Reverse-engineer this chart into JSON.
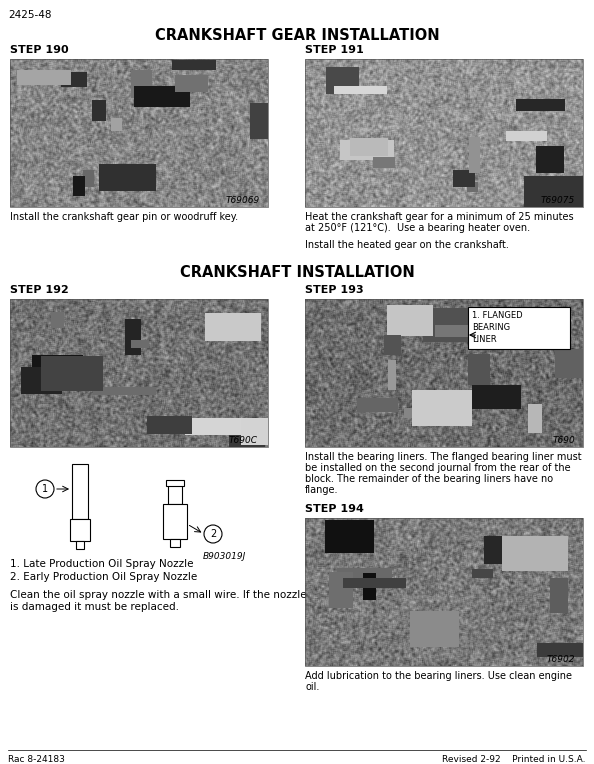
{
  "page_id": "2425-48",
  "bg_color": "#ffffff",
  "section1_title": "CRANKSHAFT GEAR INSTALLATION",
  "section2_title": "CRANKSHAFT INSTALLATION",
  "footer_left": "Rac 8-24183",
  "footer_right": "Revised 2-92    Printed in U.S.A.",
  "step190_label": "STEP 190",
  "step191_label": "STEP 191",
  "step192_label": "STEP 192",
  "step193_label": "STEP 193",
  "step194_label": "STEP 194",
  "img190_id": "T69069",
  "img191_id": "T69075",
  "img192_id": "T690C",
  "img193_id": "T690",
  "img194_id": "T6902",
  "caption190": "Install the crankshaft gear pin or woodruff key.",
  "caption191_line1": "Heat the crankshaft gear for a minimum of 25 minutes",
  "caption191_line2": "at 250°F (121°C).  Use a bearing heater oven.",
  "caption191_line3": "",
  "caption191_line4": "Install the heated gear on the crankshaft.",
  "flanged_label": "1. FLANGED\nBEARING\nLINER",
  "caption193_line1": "Install the bearing liners. The flanged bearing liner must",
  "caption193_line2": "be installed on the second journal from the rear of the",
  "caption193_line3": "block. The remainder of the bearing liners have no",
  "caption193_line4": "flange.",
  "caption194_line1": "Add lubrication to the bearing liners. Use clean engine",
  "caption194_line2": "oil.",
  "nozzle_label1": "1. Late Production Oil Spray Nozzle",
  "nozzle_label2": "2. Early Production Oil Spray Nozzle",
  "nozzle_imgid": "B903019J",
  "nozzle_note1": "Clean the oil spray nozzle with a small wire. If the nozzle",
  "nozzle_note2": "is damaged it must be replaced."
}
